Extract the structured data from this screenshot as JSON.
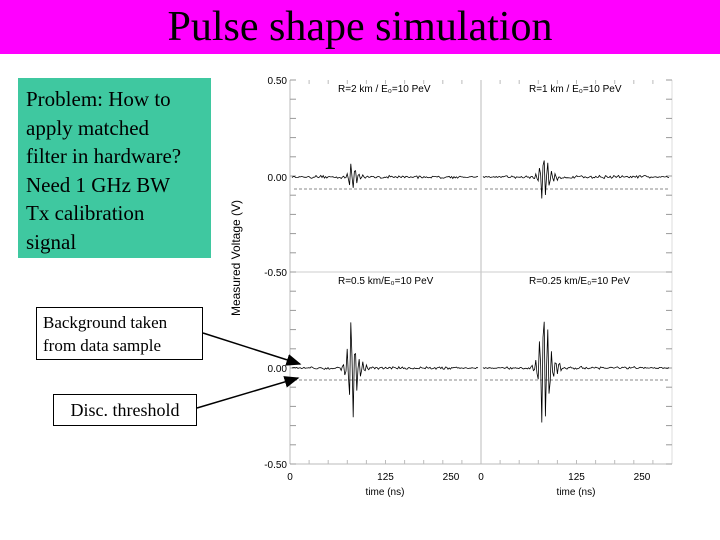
{
  "slide": {
    "title": "Pulse shape simulation",
    "problem_lines": [
      "Problem: How to",
      "apply matched",
      "filter in hardware?",
      "Need 1 GHz BW",
      "Tx calibration",
      "signal"
    ],
    "background_lines": [
      "Background taken",
      "from data sample"
    ],
    "disc_threshold_label": "Disc. threshold"
  },
  "colors": {
    "title_bar": "#ff00ff",
    "problem_box": "#3fc8a0",
    "trace": "#000000"
  },
  "plot": {
    "ylabel": "Measured Voltage (V)",
    "xlabel": "time (ns)",
    "y_tick_labels": [
      "0.50",
      "0.00",
      "-0.50",
      "0.00",
      "-0.50"
    ],
    "x_tick_labels": [
      "0",
      "125",
      "250",
      "0",
      "125",
      "250"
    ],
    "panels": [
      {
        "label": "R=2 km / E₀=10 PeV",
        "pulse_amplitude": 0.09,
        "pulse_time_ns": 80
      },
      {
        "label": "R=1 km / E₀=10 PeV",
        "pulse_amplitude": 0.17,
        "pulse_time_ns": 82
      },
      {
        "label": "R=0.5 km/E₀=10 PeV",
        "pulse_amplitude": 0.32,
        "pulse_time_ns": 80
      },
      {
        "label": "R=0.25 km/E₀=10 PeV",
        "pulse_amplitude": 0.48,
        "pulse_time_ns": 82
      }
    ]
  }
}
